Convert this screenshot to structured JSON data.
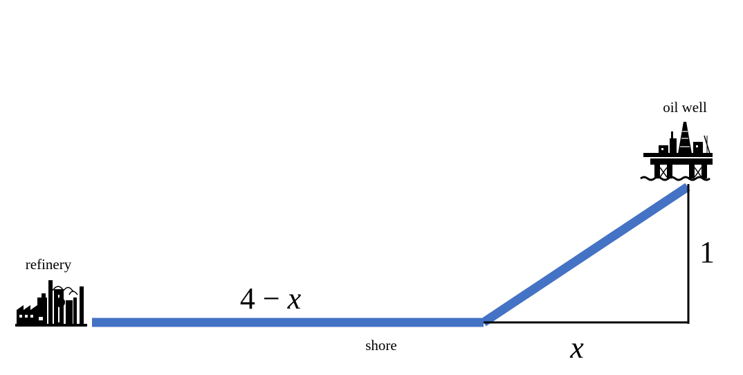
{
  "labels": {
    "refinery": "refinery",
    "oil_well": "oil well",
    "shore": "shore",
    "land_pipe_prefix": "4 − ",
    "land_pipe_var": "x",
    "vertical_distance": "1",
    "horizontal_distance": "x"
  },
  "icons": {
    "refinery": "refinery-icon",
    "oil_well": "oil-platform-icon"
  },
  "colors": {
    "pipeline": "#4472c4",
    "lines": "#000000",
    "icons": "#000000",
    "background": "#ffffff"
  }
}
